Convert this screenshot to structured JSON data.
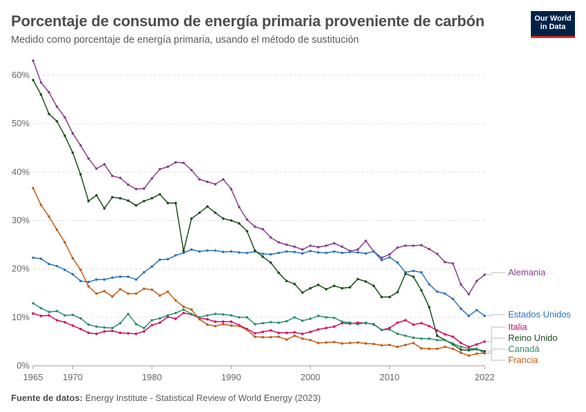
{
  "header": {
    "title": "Porcentaje de consumo de energía primaria proveniente de carbón",
    "subtitle": "Medido como porcentaje de energía primaria, usando el método de sustitución"
  },
  "logo": {
    "line1": "Our World",
    "line2": "in Data"
  },
  "footer": {
    "source_label": "Fuente de datos:",
    "source_text": "Energy Institute - Statistical Review of World Energy (2023)"
  },
  "chart_data": {
    "type": "line",
    "x_start": 1965,
    "x_end": 2022,
    "xlim": [
      1965,
      2022
    ],
    "ylim": [
      0,
      60
    ],
    "y_ticks": [
      0,
      10,
      20,
      30,
      40,
      50,
      60
    ],
    "y_tick_labels": [
      "0%",
      "10%",
      "20%",
      "30%",
      "40%",
      "50%",
      "60%"
    ],
    "x_ticks": [
      1965,
      1970,
      1980,
      1990,
      2000,
      2010,
      2022
    ],
    "grid": true,
    "legend": "right-labels",
    "series": [
      {
        "name": "Alemania",
        "color": "#883d8c",
        "values": [
          63.0,
          58.5,
          56.5,
          53.5,
          51.3,
          48.0,
          45.5,
          42.8,
          40.7,
          41.6,
          39.2,
          38.8,
          37.4,
          36.5,
          36.6,
          38.7,
          40.6,
          41.1,
          42.0,
          41.9,
          40.4,
          38.5,
          38.0,
          37.5,
          38.5,
          36.5,
          32.8,
          30.2,
          28.7,
          28.2,
          26.5,
          25.5,
          25.0,
          24.6,
          24.0,
          24.8,
          24.5,
          24.8,
          25.3,
          24.6,
          23.7,
          24.0,
          25.8,
          23.6,
          22.3,
          23.0,
          24.4,
          24.8,
          24.8,
          24.9,
          24.1,
          23.1,
          21.4,
          21.1,
          16.8,
          14.8,
          17.5,
          18.8
        ]
      },
      {
        "name": "Estados Unidos",
        "color": "#2c72bb",
        "values": [
          22.3,
          22.1,
          21.0,
          20.6,
          19.8,
          18.9,
          17.5,
          17.3,
          17.8,
          17.8,
          18.2,
          18.4,
          18.4,
          17.8,
          19.3,
          20.5,
          21.9,
          22.0,
          22.8,
          23.3,
          24.0,
          23.6,
          23.8,
          23.8,
          23.5,
          23.6,
          23.4,
          23.3,
          23.6,
          23.1,
          23.0,
          23.3,
          23.6,
          23.5,
          23.2,
          23.7,
          23.4,
          23.3,
          23.6,
          23.3,
          23.5,
          23.4,
          23.2,
          23.6,
          21.8,
          22.4,
          21.3,
          19.3,
          19.6,
          19.3,
          16.8,
          15.3,
          14.9,
          13.8,
          11.8,
          10.3,
          11.5,
          10.3
        ]
      },
      {
        "name": "Italia",
        "color": "#cf0a66",
        "values": [
          10.8,
          10.3,
          10.4,
          9.4,
          9.0,
          8.3,
          7.6,
          6.8,
          6.6,
          7.1,
          7.2,
          6.8,
          6.7,
          6.6,
          7.1,
          8.4,
          8.9,
          10.1,
          9.7,
          10.9,
          10.6,
          9.8,
          9.6,
          9.1,
          9.1,
          9.1,
          8.4,
          7.6,
          6.7,
          7.0,
          7.3,
          6.8,
          6.8,
          6.9,
          6.6,
          7.0,
          7.5,
          7.8,
          8.1,
          8.8,
          8.7,
          8.9,
          8.8,
          8.6,
          7.4,
          7.8,
          8.9,
          9.4,
          8.5,
          8.8,
          8.2,
          7.3,
          6.5,
          6.0,
          4.7,
          3.9,
          4.4,
          5.0
        ]
      },
      {
        "name": "Reino Unido",
        "color": "#1a4d1a",
        "values": [
          59.0,
          56.0,
          52.0,
          50.5,
          47.5,
          44.0,
          39.5,
          34.0,
          35.2,
          32.5,
          34.8,
          34.6,
          34.1,
          33.1,
          34.0,
          34.6,
          35.4,
          33.6,
          33.6,
          23.7,
          30.4,
          31.6,
          32.9,
          31.6,
          30.4,
          30.0,
          29.4,
          27.8,
          23.8,
          22.5,
          21.3,
          19.2,
          17.5,
          16.9,
          15.1,
          16.0,
          16.7,
          15.8,
          16.5,
          16.0,
          16.2,
          17.9,
          17.4,
          16.5,
          14.2,
          14.2,
          15.2,
          19.0,
          18.4,
          15.6,
          12.1,
          6.2,
          5.3,
          4.4,
          3.3,
          3.2,
          3.4,
          3.0
        ]
      },
      {
        "name": "Canadá",
        "color": "#2b8f6b",
        "values": [
          12.9,
          11.9,
          11.1,
          11.3,
          10.4,
          10.5,
          9.8,
          8.5,
          8.1,
          7.9,
          7.8,
          8.8,
          10.7,
          8.6,
          7.8,
          9.4,
          9.8,
          10.4,
          10.9,
          11.6,
          10.7,
          10.0,
          10.4,
          10.7,
          10.6,
          10.4,
          10.0,
          10.0,
          8.6,
          8.8,
          9.0,
          8.9,
          9.2,
          10.0,
          9.3,
          9.7,
          10.3,
          10.0,
          9.9,
          9.1,
          8.9,
          8.6,
          8.9,
          8.5,
          7.4,
          7.5,
          6.6,
          6.2,
          5.8,
          5.6,
          5.6,
          5.3,
          5.3,
          4.6,
          3.9,
          3.6,
          3.5,
          2.6
        ]
      },
      {
        "name": "Francia",
        "color": "#c15c16",
        "values": [
          36.7,
          33.2,
          30.8,
          28.1,
          25.5,
          22.2,
          19.8,
          16.4,
          14.9,
          15.4,
          14.3,
          15.8,
          14.9,
          14.9,
          15.9,
          15.7,
          14.5,
          15.3,
          13.5,
          12.2,
          11.6,
          9.6,
          8.5,
          8.2,
          8.6,
          8.3,
          8.2,
          7.4,
          6.0,
          5.9,
          5.9,
          6.0,
          5.4,
          6.2,
          5.6,
          5.3,
          4.7,
          4.8,
          4.9,
          4.6,
          4.7,
          4.8,
          4.6,
          4.5,
          4.2,
          4.3,
          3.9,
          4.3,
          4.7,
          3.6,
          3.5,
          3.5,
          3.9,
          3.5,
          2.7,
          2.1,
          2.5,
          2.6
        ]
      }
    ]
  }
}
